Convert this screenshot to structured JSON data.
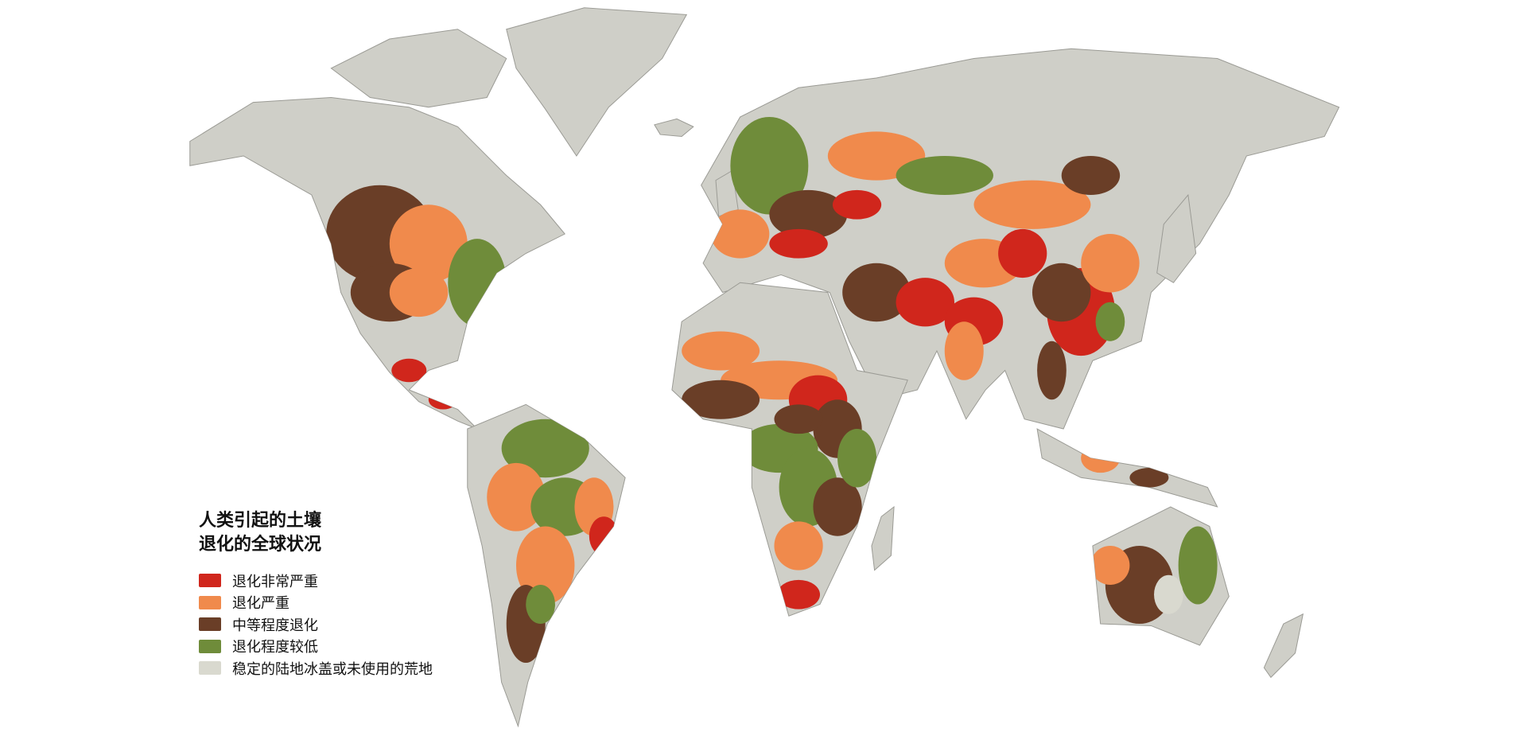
{
  "map": {
    "title_lines": [
      "人类引起的土壤",
      "退化的全球状况"
    ],
    "land_color": "#cfcfc8",
    "legend": [
      {
        "label": "退化非常严重",
        "color": "#d0261c"
      },
      {
        "label": "退化严重",
        "color": "#f08a4c"
      },
      {
        "label": "中等程度退化",
        "color": "#6a3e27"
      },
      {
        "label": "退化程度较低",
        "color": "#6f8c3a"
      },
      {
        "label": "稳定的陆地冰盖或未使用的荒地",
        "color": "#d9d9cf"
      }
    ]
  }
}
